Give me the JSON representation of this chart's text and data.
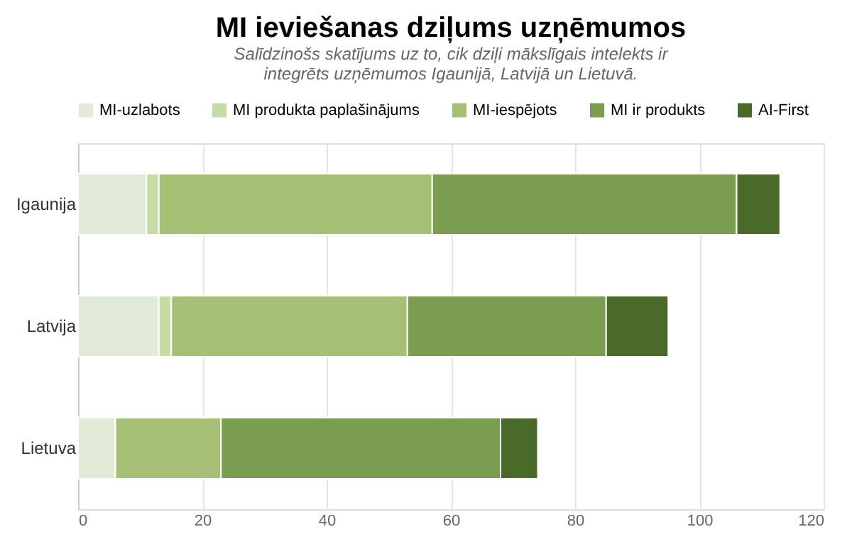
{
  "chart_data": {
    "type": "bar",
    "orientation": "horizontal",
    "stacked": true,
    "title": "MI ieviešanas dziļums uzņēmumos",
    "subtitle": "Salīdzinošs skatījums uz to, cik dziļi mākslīgais intelekts ir integrēts uzņēmumos Igaunijā, Latvijā un Lietuvā.",
    "categories": [
      "Igaunija",
      "Latvija",
      "Lietuva"
    ],
    "series": [
      {
        "name": "MI-uzlabots",
        "color": "#e2ebd7",
        "values": [
          11,
          13,
          6
        ]
      },
      {
        "name": "MI produkta paplašinājums",
        "color": "#c5dca4",
        "values": [
          2,
          2,
          0
        ]
      },
      {
        "name": "MI-iespējots",
        "color": "#a5bf74",
        "values": [
          44,
          38,
          17
        ]
      },
      {
        "name": "MI ir produkts",
        "color": "#7b9d4f",
        "values": [
          49,
          32,
          45
        ]
      },
      {
        "name": "AI-First",
        "color": "#4a6a2a",
        "values": [
          7,
          10,
          6
        ]
      }
    ],
    "xlim": [
      0,
      120
    ],
    "xticks": [
      0,
      20,
      40,
      60,
      80,
      100,
      120
    ],
    "grid": "x",
    "legend": "top"
  }
}
